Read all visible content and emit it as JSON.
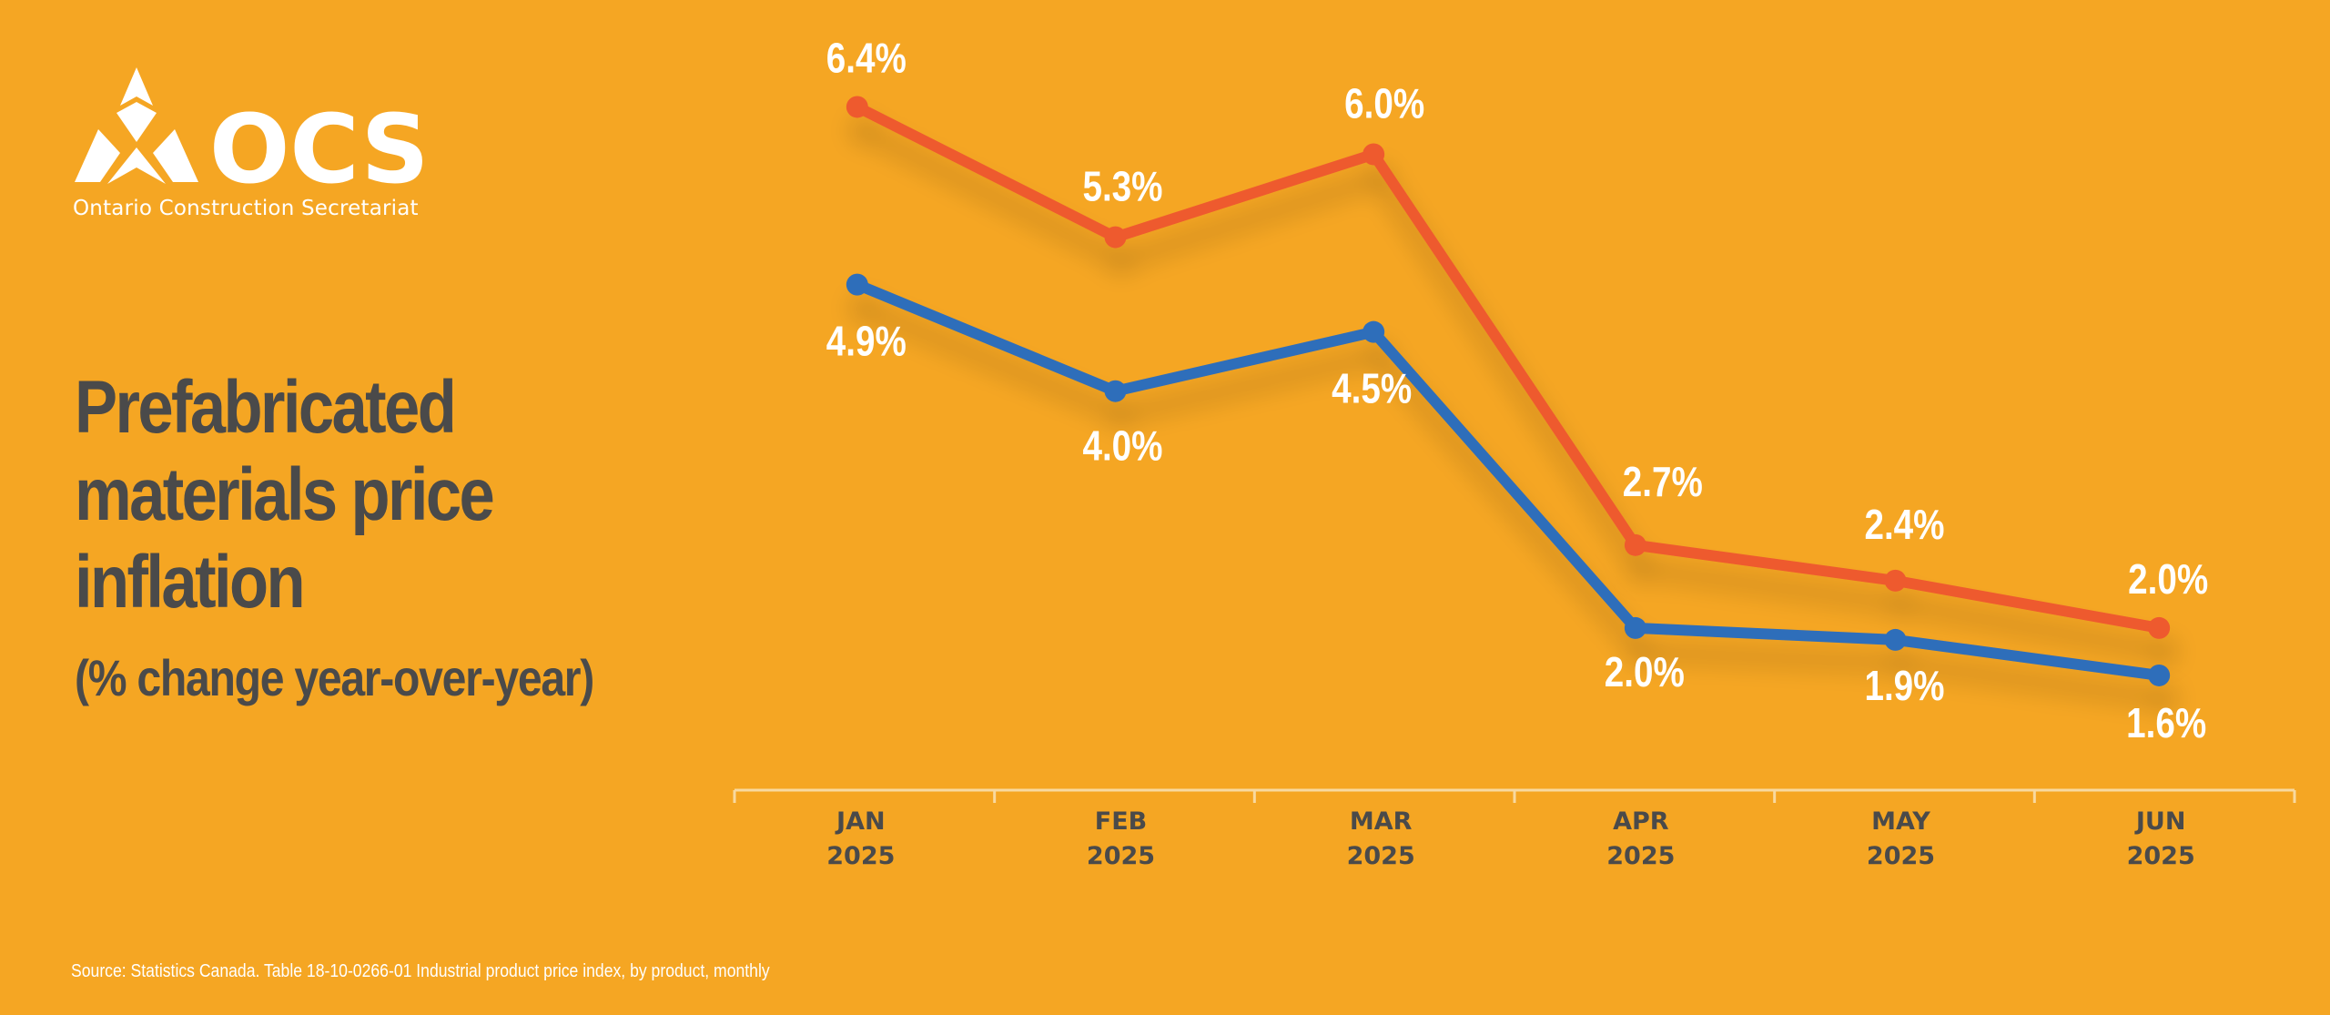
{
  "brand": {
    "logo_text": "OCS",
    "organization": "Ontario Construction Secretariat"
  },
  "title": "Prefabricated materials price inflation",
  "subtitle": "(% change year-over-year)",
  "source": "Source: Statistics Canada. Table 18-10-0266-01  Industrial product price index, by product, monthly",
  "colors": {
    "background": "#F5A623",
    "series_red": "#EE5A2F",
    "series_blue": "#2F6EBA",
    "title_text": "#4A4A4A",
    "label_text": "#FFFFFF",
    "axis_line": "#F8D9A0"
  },
  "chart_data": {
    "type": "line",
    "categories": [
      [
        "JAN",
        "2025"
      ],
      [
        "FEB",
        "2025"
      ],
      [
        "MAR",
        "2025"
      ],
      [
        "APR",
        "2025"
      ],
      [
        "MAY",
        "2025"
      ],
      [
        "JUN",
        "2025"
      ]
    ],
    "series": [
      {
        "color": "#EE5A2F",
        "values": [
          6.4,
          5.3,
          6.0,
          2.7,
          2.4,
          2.0
        ],
        "labels": [
          "6.4%",
          "5.3%",
          "6.0%",
          "2.7%",
          "2.4%",
          "2.0%"
        ]
      },
      {
        "color": "#2F6EBA",
        "values": [
          4.9,
          4.0,
          4.5,
          2.0,
          1.9,
          1.6
        ],
        "labels": [
          "4.9%",
          "4.0%",
          "4.5%",
          "2.0%",
          "1.9%",
          "1.6%"
        ]
      }
    ],
    "grid": false,
    "legend": "none"
  }
}
